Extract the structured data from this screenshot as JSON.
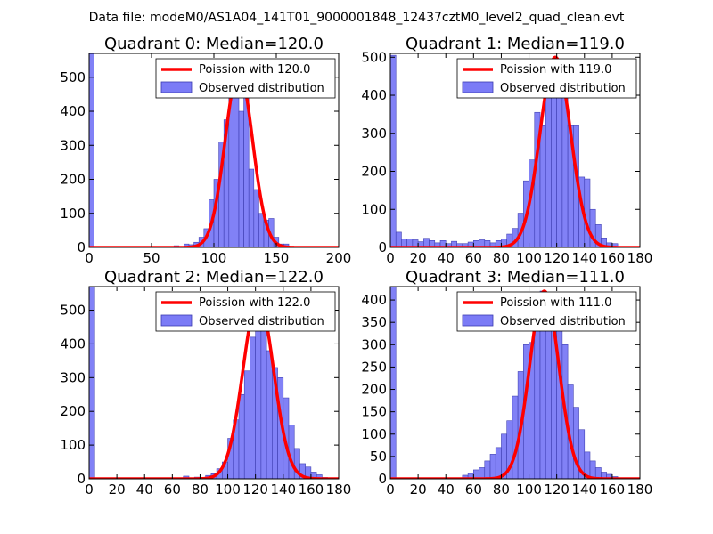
{
  "figure": {
    "suptitle": "Data file: modeM0/AS1A04_141T01_9000001848_12437cztM0_level2_quad_clean.evt"
  },
  "colors": {
    "bar_fill": "#7b7bf6",
    "bar_edge": "#3b3bb0",
    "poisson_line": "#ff0000",
    "axes": "#000000"
  },
  "chart_data": [
    {
      "type": "bar",
      "title": "Quadrant 0: Median=120.0",
      "xlim": [
        0,
        200
      ],
      "ylim": [
        0,
        570
      ],
      "xticks": [
        0,
        50,
        100,
        150,
        200
      ],
      "yticks": [
        0,
        100,
        200,
        300,
        400,
        500
      ],
      "legend": [
        "Poission with 120.0",
        "Observed distribution"
      ],
      "legend_loc": "upper right",
      "bin_width": 4,
      "bins": [
        {
          "x": 0,
          "y": 570
        },
        {
          "x": 68,
          "y": 5
        },
        {
          "x": 76,
          "y": 10
        },
        {
          "x": 80,
          "y": 8
        },
        {
          "x": 84,
          "y": 15
        },
        {
          "x": 88,
          "y": 30
        },
        {
          "x": 92,
          "y": 55
        },
        {
          "x": 96,
          "y": 140
        },
        {
          "x": 100,
          "y": 200
        },
        {
          "x": 104,
          "y": 310
        },
        {
          "x": 108,
          "y": 375
        },
        {
          "x": 112,
          "y": 440
        },
        {
          "x": 116,
          "y": 520
        },
        {
          "x": 120,
          "y": 400
        },
        {
          "x": 124,
          "y": 450
        },
        {
          "x": 128,
          "y": 230
        },
        {
          "x": 132,
          "y": 170
        },
        {
          "x": 136,
          "y": 100
        },
        {
          "x": 140,
          "y": 80
        },
        {
          "x": 144,
          "y": 85
        },
        {
          "x": 148,
          "y": 30
        },
        {
          "x": 152,
          "y": 10
        },
        {
          "x": 156,
          "y": 10
        },
        {
          "x": 160,
          "y": 2
        }
      ],
      "poisson": {
        "mean": 120.0,
        "peak": 520,
        "sigma": 11
      }
    },
    {
      "type": "bar",
      "title": "Quadrant 1: Median=119.0",
      "xlim": [
        0,
        180
      ],
      "ylim": [
        0,
        510
      ],
      "xticks": [
        0,
        20,
        40,
        60,
        80,
        100,
        120,
        140,
        160,
        180
      ],
      "yticks": [
        0,
        100,
        200,
        300,
        400,
        500
      ],
      "legend": [
        "Poission with 119.0",
        "Observed distribution"
      ],
      "legend_loc": "upper right",
      "bin_width": 4,
      "bins": [
        {
          "x": 0,
          "y": 505
        },
        {
          "x": 4,
          "y": 40
        },
        {
          "x": 8,
          "y": 22
        },
        {
          "x": 12,
          "y": 22
        },
        {
          "x": 16,
          "y": 20
        },
        {
          "x": 20,
          "y": 15
        },
        {
          "x": 24,
          "y": 24
        },
        {
          "x": 28,
          "y": 18
        },
        {
          "x": 32,
          "y": 12
        },
        {
          "x": 36,
          "y": 18
        },
        {
          "x": 40,
          "y": 10
        },
        {
          "x": 44,
          "y": 16
        },
        {
          "x": 48,
          "y": 10
        },
        {
          "x": 52,
          "y": 10
        },
        {
          "x": 56,
          "y": 14
        },
        {
          "x": 60,
          "y": 18
        },
        {
          "x": 64,
          "y": 20
        },
        {
          "x": 68,
          "y": 18
        },
        {
          "x": 72,
          "y": 12
        },
        {
          "x": 76,
          "y": 18
        },
        {
          "x": 80,
          "y": 22
        },
        {
          "x": 84,
          "y": 35
        },
        {
          "x": 88,
          "y": 50
        },
        {
          "x": 92,
          "y": 90
        },
        {
          "x": 96,
          "y": 175
        },
        {
          "x": 100,
          "y": 230
        },
        {
          "x": 104,
          "y": 355
        },
        {
          "x": 108,
          "y": 320
        },
        {
          "x": 112,
          "y": 400
        },
        {
          "x": 116,
          "y": 460
        },
        {
          "x": 120,
          "y": 420
        },
        {
          "x": 124,
          "y": 400
        },
        {
          "x": 128,
          "y": 320
        },
        {
          "x": 132,
          "y": 320
        },
        {
          "x": 136,
          "y": 185
        },
        {
          "x": 140,
          "y": 180
        },
        {
          "x": 144,
          "y": 100
        },
        {
          "x": 148,
          "y": 60
        },
        {
          "x": 152,
          "y": 25
        },
        {
          "x": 156,
          "y": 12
        },
        {
          "x": 160,
          "y": 10
        },
        {
          "x": 164,
          "y": 2
        }
      ],
      "poisson": {
        "mean": 119.0,
        "peak": 500,
        "sigma": 11
      }
    },
    {
      "type": "bar",
      "title": "Quadrant 2: Median=122.0",
      "xlim": [
        0,
        180
      ],
      "ylim": [
        0,
        570
      ],
      "xticks": [
        0,
        20,
        40,
        60,
        80,
        100,
        120,
        140,
        160,
        180
      ],
      "yticks": [
        0,
        100,
        200,
        300,
        400,
        500
      ],
      "legend": [
        "Poission with 122.0",
        "Observed distribution"
      ],
      "legend_loc": "upper right",
      "bin_width": 4,
      "bins": [
        {
          "x": 0,
          "y": 570
        },
        {
          "x": 68,
          "y": 8
        },
        {
          "x": 76,
          "y": 5
        },
        {
          "x": 84,
          "y": 10
        },
        {
          "x": 88,
          "y": 15
        },
        {
          "x": 92,
          "y": 30
        },
        {
          "x": 96,
          "y": 50
        },
        {
          "x": 100,
          "y": 120
        },
        {
          "x": 104,
          "y": 175
        },
        {
          "x": 108,
          "y": 250
        },
        {
          "x": 112,
          "y": 320
        },
        {
          "x": 116,
          "y": 420
        },
        {
          "x": 120,
          "y": 490
        },
        {
          "x": 124,
          "y": 470
        },
        {
          "x": 128,
          "y": 380
        },
        {
          "x": 132,
          "y": 330
        },
        {
          "x": 136,
          "y": 300
        },
        {
          "x": 140,
          "y": 240
        },
        {
          "x": 144,
          "y": 160
        },
        {
          "x": 148,
          "y": 90
        },
        {
          "x": 152,
          "y": 45
        },
        {
          "x": 156,
          "y": 35
        },
        {
          "x": 160,
          "y": 20
        },
        {
          "x": 164,
          "y": 12
        },
        {
          "x": 168,
          "y": 4
        }
      ],
      "poisson": {
        "mean": 122.0,
        "peak": 535,
        "sigma": 11
      }
    },
    {
      "type": "bar",
      "title": "Quadrant 3: Median=111.0",
      "xlim": [
        0,
        180
      ],
      "ylim": [
        0,
        430
      ],
      "xticks": [
        0,
        20,
        40,
        60,
        80,
        100,
        120,
        140,
        160,
        180
      ],
      "yticks": [
        0,
        50,
        100,
        150,
        200,
        250,
        300,
        350,
        400
      ],
      "legend": [
        "Poission with 111.0",
        "Observed distribution"
      ],
      "legend_loc": "upper right",
      "bin_width": 4,
      "bins": [
        {
          "x": 0,
          "y": 430
        },
        {
          "x": 52,
          "y": 8
        },
        {
          "x": 56,
          "y": 12
        },
        {
          "x": 60,
          "y": 20
        },
        {
          "x": 64,
          "y": 25
        },
        {
          "x": 68,
          "y": 40
        },
        {
          "x": 72,
          "y": 55
        },
        {
          "x": 76,
          "y": 70
        },
        {
          "x": 80,
          "y": 100
        },
        {
          "x": 84,
          "y": 130
        },
        {
          "x": 88,
          "y": 185
        },
        {
          "x": 92,
          "y": 240
        },
        {
          "x": 96,
          "y": 300
        },
        {
          "x": 100,
          "y": 305
        },
        {
          "x": 104,
          "y": 380
        },
        {
          "x": 108,
          "y": 420
        },
        {
          "x": 112,
          "y": 400
        },
        {
          "x": 116,
          "y": 375
        },
        {
          "x": 120,
          "y": 340
        },
        {
          "x": 124,
          "y": 300
        },
        {
          "x": 128,
          "y": 210
        },
        {
          "x": 132,
          "y": 160
        },
        {
          "x": 136,
          "y": 110
        },
        {
          "x": 140,
          "y": 60
        },
        {
          "x": 144,
          "y": 40
        },
        {
          "x": 148,
          "y": 25
        },
        {
          "x": 152,
          "y": 15
        },
        {
          "x": 156,
          "y": 10
        },
        {
          "x": 160,
          "y": 5
        }
      ],
      "poisson": {
        "mean": 111.0,
        "peak": 420,
        "sigma": 10.5
      }
    }
  ]
}
